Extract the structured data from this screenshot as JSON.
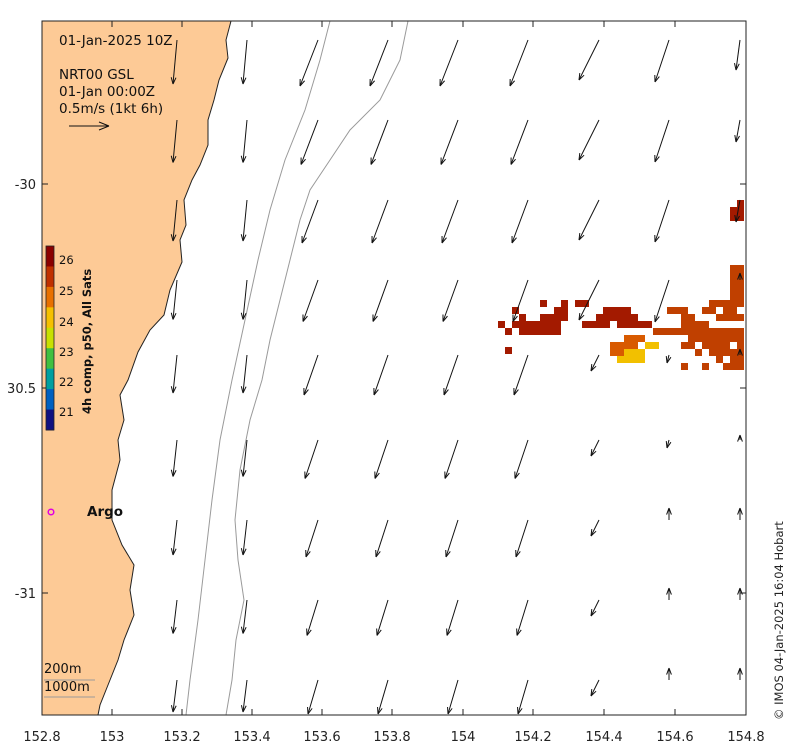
{
  "header": {
    "datetime": "01-Jan-2025 10Z",
    "product": "NRT00 GSL",
    "product_time": "01-Jan 00:00Z",
    "scale_label": "0.5m/s (1kt 6h)"
  },
  "axes": {
    "x_ticks": [
      "152.8",
      "153",
      "153.2",
      "153.4",
      "153.6",
      "153.8",
      "154",
      "154.2",
      "154.4",
      "154.6",
      "154.8"
    ],
    "y_ticks": [
      "-30",
      "30.5",
      "-31"
    ]
  },
  "colorbar": {
    "title": "4h comp, p50, All Sats",
    "ticks": [
      "26",
      "25",
      "24",
      "23",
      "22",
      "21"
    ],
    "colors": [
      "#8b0000",
      "#c03000",
      "#e87000",
      "#f5c000",
      "#c8e000",
      "#40c040",
      "#00a0a0",
      "#0060c0",
      "#101080"
    ]
  },
  "markers": {
    "argo_label": "Argo",
    "argo_color": "#e000e0"
  },
  "isobaths": {
    "shallow": "200m",
    "deep": "1000m"
  },
  "credit": "© IMOS 04-Jan-2025 16:04 Hobart",
  "colors": {
    "land": "#fdca96",
    "coast": "#222222",
    "isobath": "#9a9a9a"
  }
}
